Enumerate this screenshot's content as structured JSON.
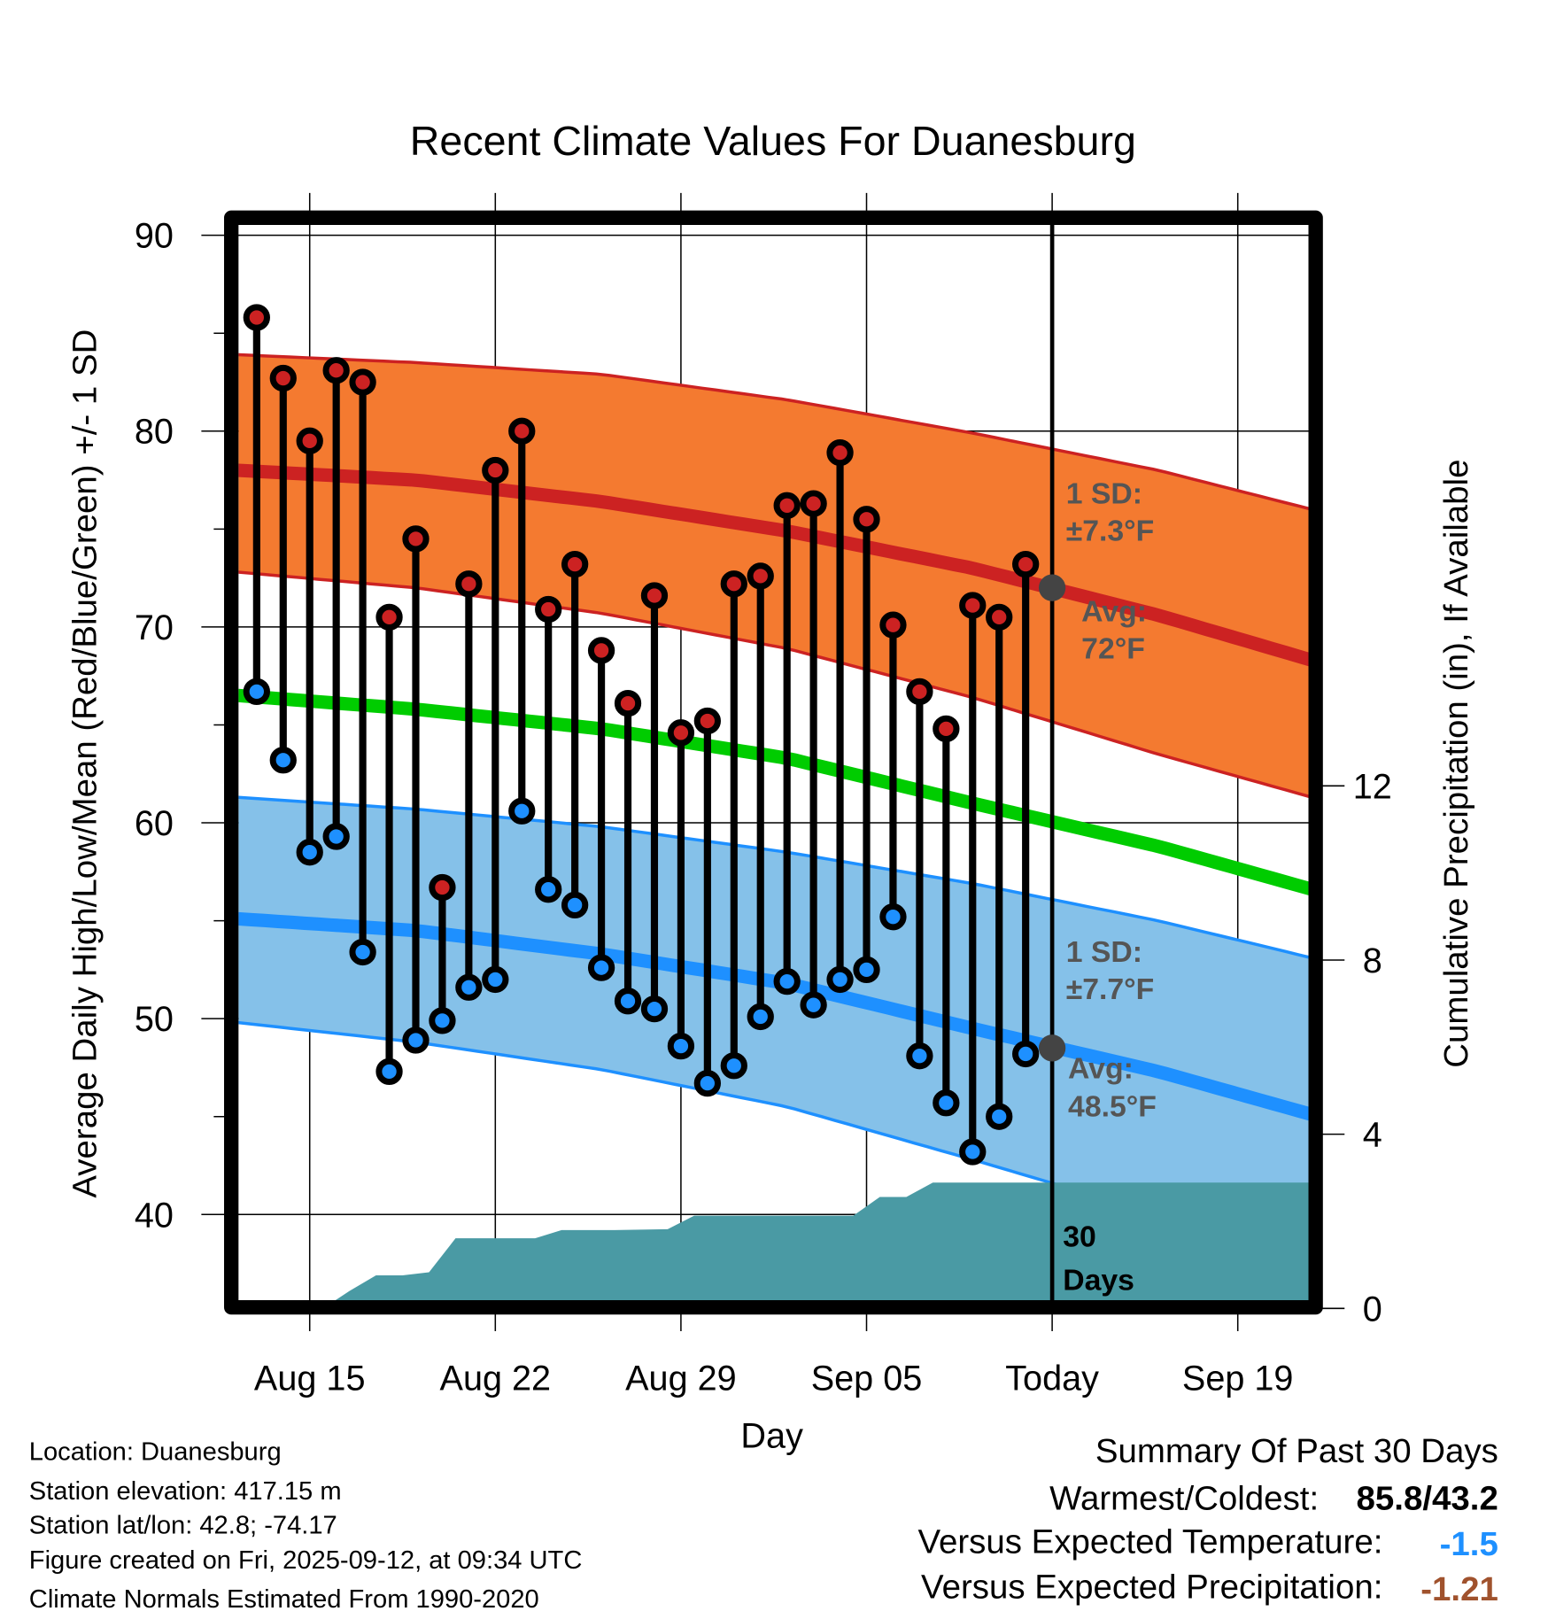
{
  "chart_data": {
    "type": "line",
    "title": "Recent Climate Values For Duanesburg",
    "xlabel": "Day",
    "ylabel": "Average Daily High/Low/Mean (Red/Blue/Green) +/- 1 SD",
    "y2label": "Cumulative Precipitation (in), If Available",
    "ylim": [
      35.6,
      90.7
    ],
    "y2lim": [
      0,
      24
    ],
    "yticks": [
      "90",
      "80",
      "70",
      "60",
      "50",
      "40"
    ],
    "y2ticks": [
      "12",
      "8",
      "4",
      "0"
    ],
    "xticks": [
      "Aug 15",
      "Aug 22",
      "Aug 29",
      "Sep 05",
      "Today",
      "Sep 19"
    ],
    "grid": true,
    "days": [
      "Aug 13",
      "Aug 14",
      "Aug 15",
      "Aug 16",
      "Aug 17",
      "Aug 18",
      "Aug 19",
      "Aug 20",
      "Aug 21",
      "Aug 22",
      "Aug 23",
      "Aug 24",
      "Aug 25",
      "Aug 26",
      "Aug 27",
      "Aug 28",
      "Aug 29",
      "Aug 30",
      "Aug 31",
      "Sep 01",
      "Sep 02",
      "Sep 03",
      "Sep 04",
      "Sep 05",
      "Sep 06",
      "Sep 07",
      "Sep 08",
      "Sep 09",
      "Sep 10",
      "Sep 11"
    ],
    "series": [
      {
        "name": "Daily High",
        "color": "#cc2222",
        "values": [
          85.8,
          82.7,
          79.5,
          83.1,
          82.5,
          70.5,
          74.5,
          56.7,
          72.2,
          78.0,
          80.0,
          70.9,
          73.2,
          68.8,
          66.1,
          71.6,
          64.6,
          65.2,
          72.2,
          72.6,
          76.2,
          76.3,
          78.9,
          75.5,
          70.1,
          66.7,
          64.8,
          71.1,
          70.5,
          73.2
        ]
      },
      {
        "name": "Daily Low",
        "color": "#1e90ff",
        "values": [
          66.7,
          63.2,
          58.5,
          59.3,
          53.4,
          47.3,
          48.9,
          49.9,
          51.6,
          52.0,
          60.6,
          56.6,
          55.8,
          52.6,
          50.9,
          50.5,
          48.6,
          46.7,
          47.6,
          50.1,
          51.9,
          50.7,
          52.0,
          52.5,
          55.2,
          48.1,
          45.7,
          43.2,
          45.0,
          48.2
        ]
      },
      {
        "name": "Cumulative Precipitation",
        "color": "#4a9aa4",
        "values": [
          0,
          0,
          0,
          0.4,
          0.76,
          0.76,
          0.83,
          1.61,
          1.61,
          1.61,
          1.61,
          1.8,
          1.8,
          1.8,
          1.81,
          1.82,
          2.13,
          2.13,
          2.13,
          2.13,
          2.13,
          2.13,
          2.13,
          2.56,
          2.56,
          2.89,
          2.89,
          2.89,
          2.89,
          2.89
        ]
      }
    ],
    "normals": {
      "days_from_aug15": [
        -2.7,
        4,
        11,
        18,
        25,
        32,
        37.8
      ],
      "high_avg": [
        78.0,
        77.5,
        76.4,
        74.9,
        73.0,
        70.6,
        68.3
      ],
      "high_upper": [
        83.9,
        83.5,
        82.9,
        81.6,
        79.9,
        78.0,
        76.0
      ],
      "high_lower": [
        72.8,
        72.0,
        70.7,
        68.9,
        66.4,
        63.5,
        61.3
      ],
      "mean_avg": [
        66.5,
        65.8,
        64.8,
        63.3,
        61.0,
        58.8,
        56.6
      ],
      "low_avg": [
        55.1,
        54.5,
        53.3,
        51.8,
        49.5,
        47.3,
        45.1
      ],
      "low_upper": [
        61.3,
        60.7,
        59.8,
        58.5,
        56.9,
        55.0,
        53.1
      ],
      "low_lower": [
        49.8,
        48.8,
        47.4,
        45.5,
        42.8,
        40.0,
        37.5
      ]
    },
    "today_values": {
      "high_avg": 72,
      "low_avg": 48.5
    },
    "annotations": {
      "high_sd_1": "1 SD:",
      "high_sd_2": "±7.3°F",
      "high_avg_1": "Avg:",
      "high_avg_2": "72°F",
      "low_sd_1": "1 SD:",
      "low_sd_2": "±7.7°F",
      "low_avg_1": "Avg:",
      "low_avg_2": "48.5°F",
      "days_1": "30",
      "days_2": "Days"
    },
    "colors": {
      "high_band": "#f47a30",
      "high_line": "#cc2222",
      "mean_line": "#00cc00",
      "low_band": "#85c1e9",
      "low_line": "#1e90ff",
      "precip": "#4a9aa4"
    }
  },
  "footer": {
    "location": "Location: Duanesburg",
    "elevation": "Station elevation: 417.15 m",
    "latlon": "Station lat/lon: 42.8; -74.17",
    "created": "Figure created on Fri, 2025-09-12, at 09:34 UTC",
    "normals": "Climate Normals Estimated From 1990-2020"
  },
  "summary": {
    "title": "Summary Of Past 30 Days",
    "warmest_label": "Warmest/Coldest:",
    "warmest_value": "85.8/43.2",
    "temp_label": "Versus Expected Temperature:",
    "temp_value": "-1.5",
    "temp_color": "#1e90ff",
    "precip_label": "Versus Expected Precipitation:",
    "precip_value": "-1.21",
    "precip_color": "#a0522d"
  }
}
